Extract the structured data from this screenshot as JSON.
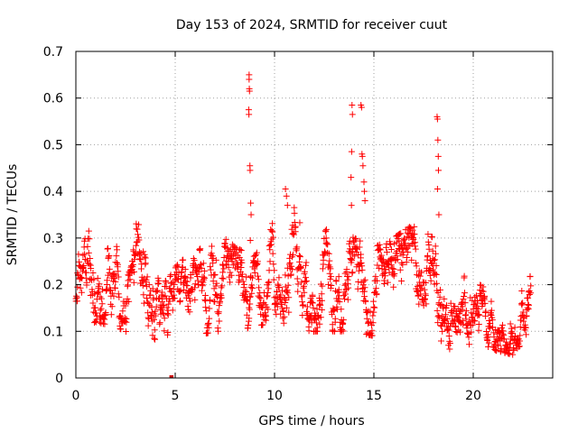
{
  "chart_data": {
    "type": "scatter",
    "title": "Day 153 of 2024, SRMTID for receiver cuut",
    "xlabel": "GPS time / hours",
    "ylabel": "SRMTID / TECUs",
    "xlim": [
      0,
      24
    ],
    "ylim": [
      0,
      0.7
    ],
    "xticks": [
      0,
      5,
      10,
      15,
      20
    ],
    "xtick_labels": [
      "0",
      "5",
      "10",
      "15",
      "20"
    ],
    "yticks": [
      0,
      0.1,
      0.2,
      0.3,
      0.4,
      0.5,
      0.6,
      0.7
    ],
    "ytick_labels": [
      "0",
      "0.1",
      "0.2",
      "0.3",
      "0.4",
      "0.5",
      "0.6",
      "0.7"
    ],
    "grid": true,
    "marker": "plus",
    "color": "#ff0000",
    "note": "Dense scatter (~1500 points) from 0 to ~22.9 h; baseline values mostly 0.1-0.3 TECU. Representative points listed; background bulk summarized by envelope.",
    "envelope": [
      {
        "x": 0.0,
        "low": 0.1,
        "high": 0.26
      },
      {
        "x": 1.0,
        "low": 0.12,
        "high": 0.35
      },
      {
        "x": 2.0,
        "low": 0.11,
        "high": 0.3
      },
      {
        "x": 3.0,
        "low": 0.09,
        "high": 0.34
      },
      {
        "x": 4.0,
        "low": 0.08,
        "high": 0.32
      },
      {
        "x": 5.0,
        "low": 0.1,
        "high": 0.25
      },
      {
        "x": 6.0,
        "low": 0.09,
        "high": 0.26
      },
      {
        "x": 7.0,
        "low": 0.1,
        "high": 0.33
      },
      {
        "x": 8.0,
        "low": 0.1,
        "high": 0.28
      },
      {
        "x": 9.0,
        "low": 0.11,
        "high": 0.26
      },
      {
        "x": 10.0,
        "low": 0.12,
        "high": 0.34
      },
      {
        "x": 11.0,
        "low": 0.09,
        "high": 0.38
      },
      {
        "x": 12.0,
        "low": 0.1,
        "high": 0.3
      },
      {
        "x": 13.0,
        "low": 0.1,
        "high": 0.33
      },
      {
        "x": 14.0,
        "low": 0.1,
        "high": 0.3
      },
      {
        "x": 15.0,
        "low": 0.09,
        "high": 0.28
      },
      {
        "x": 16.0,
        "low": 0.07,
        "high": 0.3
      },
      {
        "x": 17.0,
        "low": 0.09,
        "high": 0.33
      },
      {
        "x": 18.0,
        "low": 0.07,
        "high": 0.3
      },
      {
        "x": 19.0,
        "low": 0.06,
        "high": 0.25
      },
      {
        "x": 20.0,
        "low": 0.05,
        "high": 0.21
      },
      {
        "x": 21.0,
        "low": 0.06,
        "high": 0.18
      },
      {
        "x": 22.0,
        "low": 0.05,
        "high": 0.17
      },
      {
        "x": 22.9,
        "low": 0.1,
        "high": 0.22
      }
    ],
    "spikes": [
      {
        "x": 4.8,
        "y": 0.0
      },
      {
        "x": 4.82,
        "y": 0.0
      },
      {
        "x": 8.72,
        "y": 0.65
      },
      {
        "x": 8.72,
        "y": 0.64
      },
      {
        "x": 8.73,
        "y": 0.62
      },
      {
        "x": 8.74,
        "y": 0.615
      },
      {
        "x": 8.7,
        "y": 0.575
      },
      {
        "x": 8.71,
        "y": 0.565
      },
      {
        "x": 8.76,
        "y": 0.455
      },
      {
        "x": 8.77,
        "y": 0.445
      },
      {
        "x": 8.8,
        "y": 0.375
      },
      {
        "x": 8.82,
        "y": 0.35
      },
      {
        "x": 8.78,
        "y": 0.295
      },
      {
        "x": 10.55,
        "y": 0.405
      },
      {
        "x": 10.6,
        "y": 0.39
      },
      {
        "x": 10.65,
        "y": 0.37
      },
      {
        "x": 13.9,
        "y": 0.585
      },
      {
        "x": 13.92,
        "y": 0.565
      },
      {
        "x": 13.88,
        "y": 0.485
      },
      {
        "x": 13.85,
        "y": 0.43
      },
      {
        "x": 13.87,
        "y": 0.37
      },
      {
        "x": 14.35,
        "y": 0.585
      },
      {
        "x": 14.38,
        "y": 0.58
      },
      {
        "x": 14.4,
        "y": 0.48
      },
      {
        "x": 14.42,
        "y": 0.475
      },
      {
        "x": 14.45,
        "y": 0.455
      },
      {
        "x": 14.5,
        "y": 0.42
      },
      {
        "x": 14.52,
        "y": 0.4
      },
      {
        "x": 14.55,
        "y": 0.38
      },
      {
        "x": 18.18,
        "y": 0.56
      },
      {
        "x": 18.2,
        "y": 0.555
      },
      {
        "x": 18.22,
        "y": 0.51
      },
      {
        "x": 18.24,
        "y": 0.475
      },
      {
        "x": 18.25,
        "y": 0.445
      },
      {
        "x": 18.2,
        "y": 0.405
      },
      {
        "x": 18.27,
        "y": 0.35
      }
    ]
  }
}
